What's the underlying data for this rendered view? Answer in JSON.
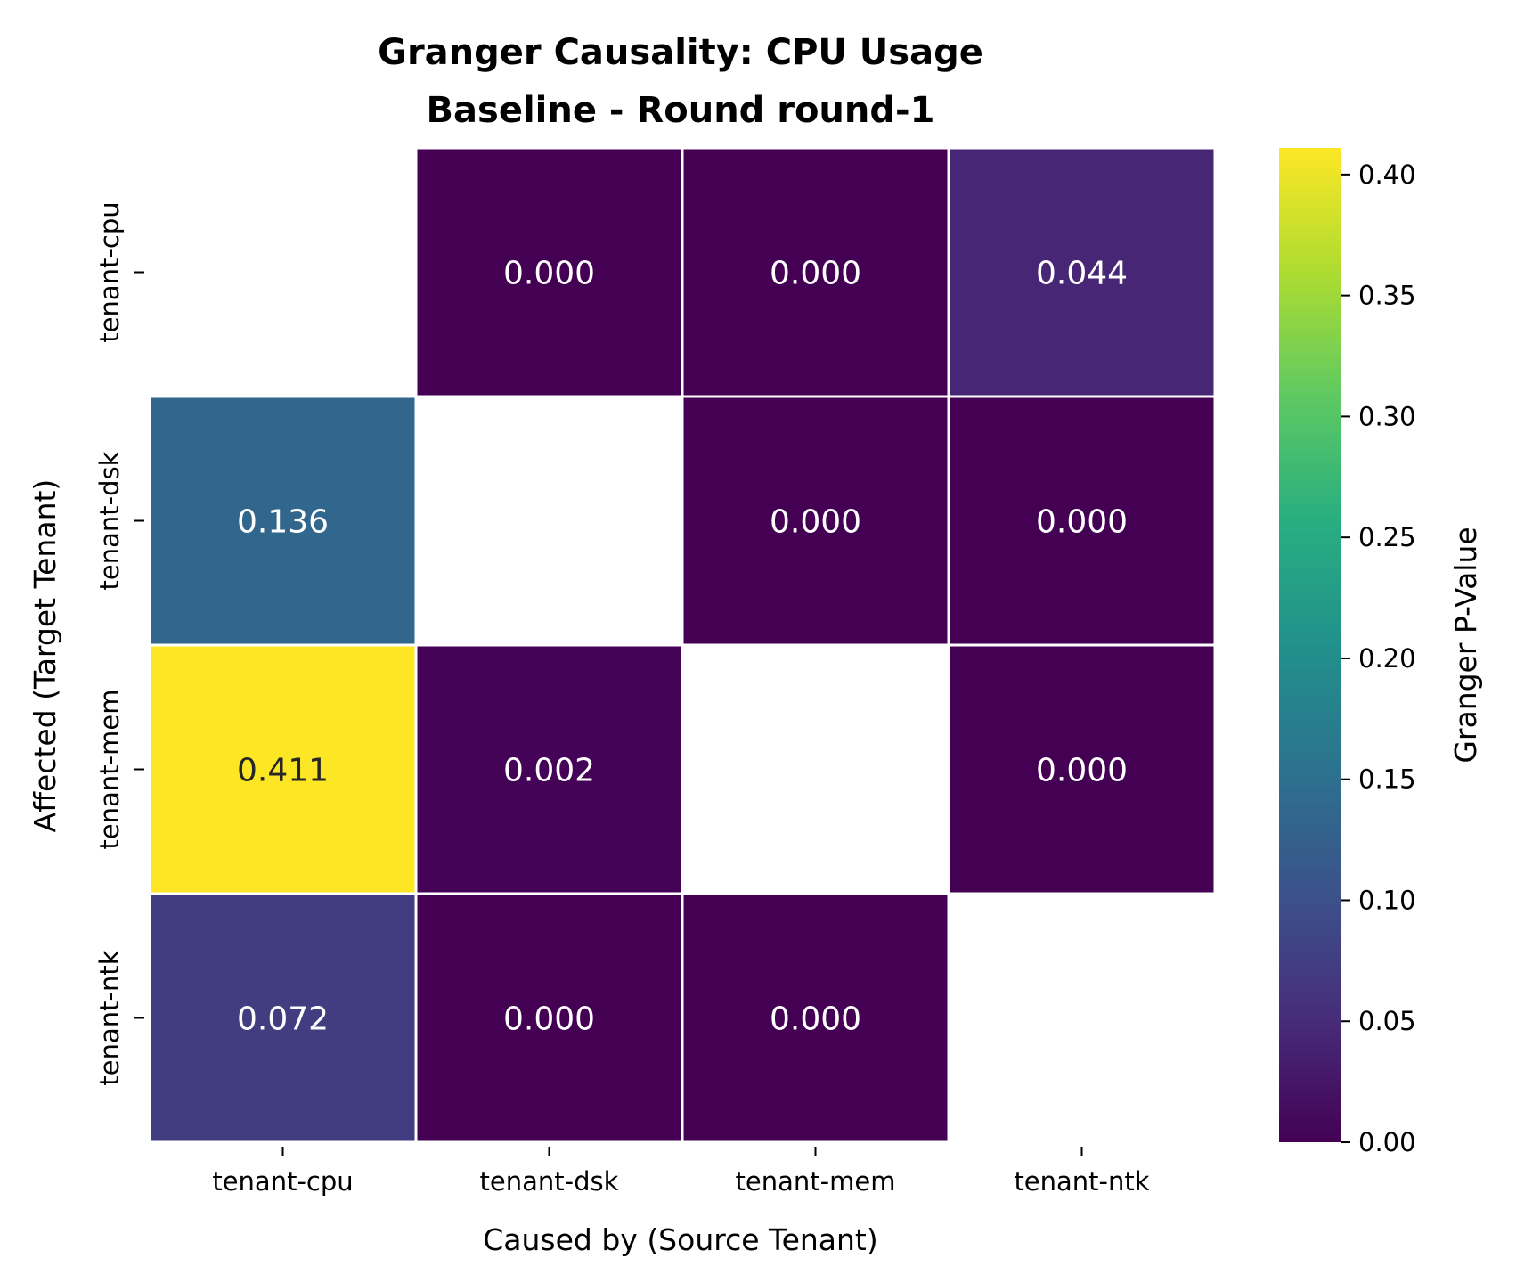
{
  "chart_data": {
    "type": "heatmap",
    "title_lines": [
      "Granger Causality: CPU Usage",
      "Baseline - Round round-1"
    ],
    "xlabel": "Caused by (Source Tenant)",
    "ylabel": "Affected (Target Tenant)",
    "x_categories": [
      "tenant-cpu",
      "tenant-dsk",
      "tenant-mem",
      "tenant-ntk"
    ],
    "y_categories": [
      "tenant-cpu",
      "tenant-dsk",
      "tenant-mem",
      "tenant-ntk"
    ],
    "values": [
      [
        null,
        0.0,
        0.0,
        0.044
      ],
      [
        0.136,
        null,
        0.0,
        0.0
      ],
      [
        0.411,
        0.002,
        null,
        0.0
      ],
      [
        0.072,
        0.0,
        0.0,
        null
      ]
    ],
    "value_format": "3 decimals",
    "colormap": "viridis",
    "colorbar": {
      "label": "Granger P-Value",
      "range": [
        0.0,
        0.411
      ],
      "ticks": [
        "0.00",
        "0.05",
        "0.10",
        "0.15",
        "0.20",
        "0.25",
        "0.30",
        "0.35",
        "0.40"
      ]
    }
  }
}
